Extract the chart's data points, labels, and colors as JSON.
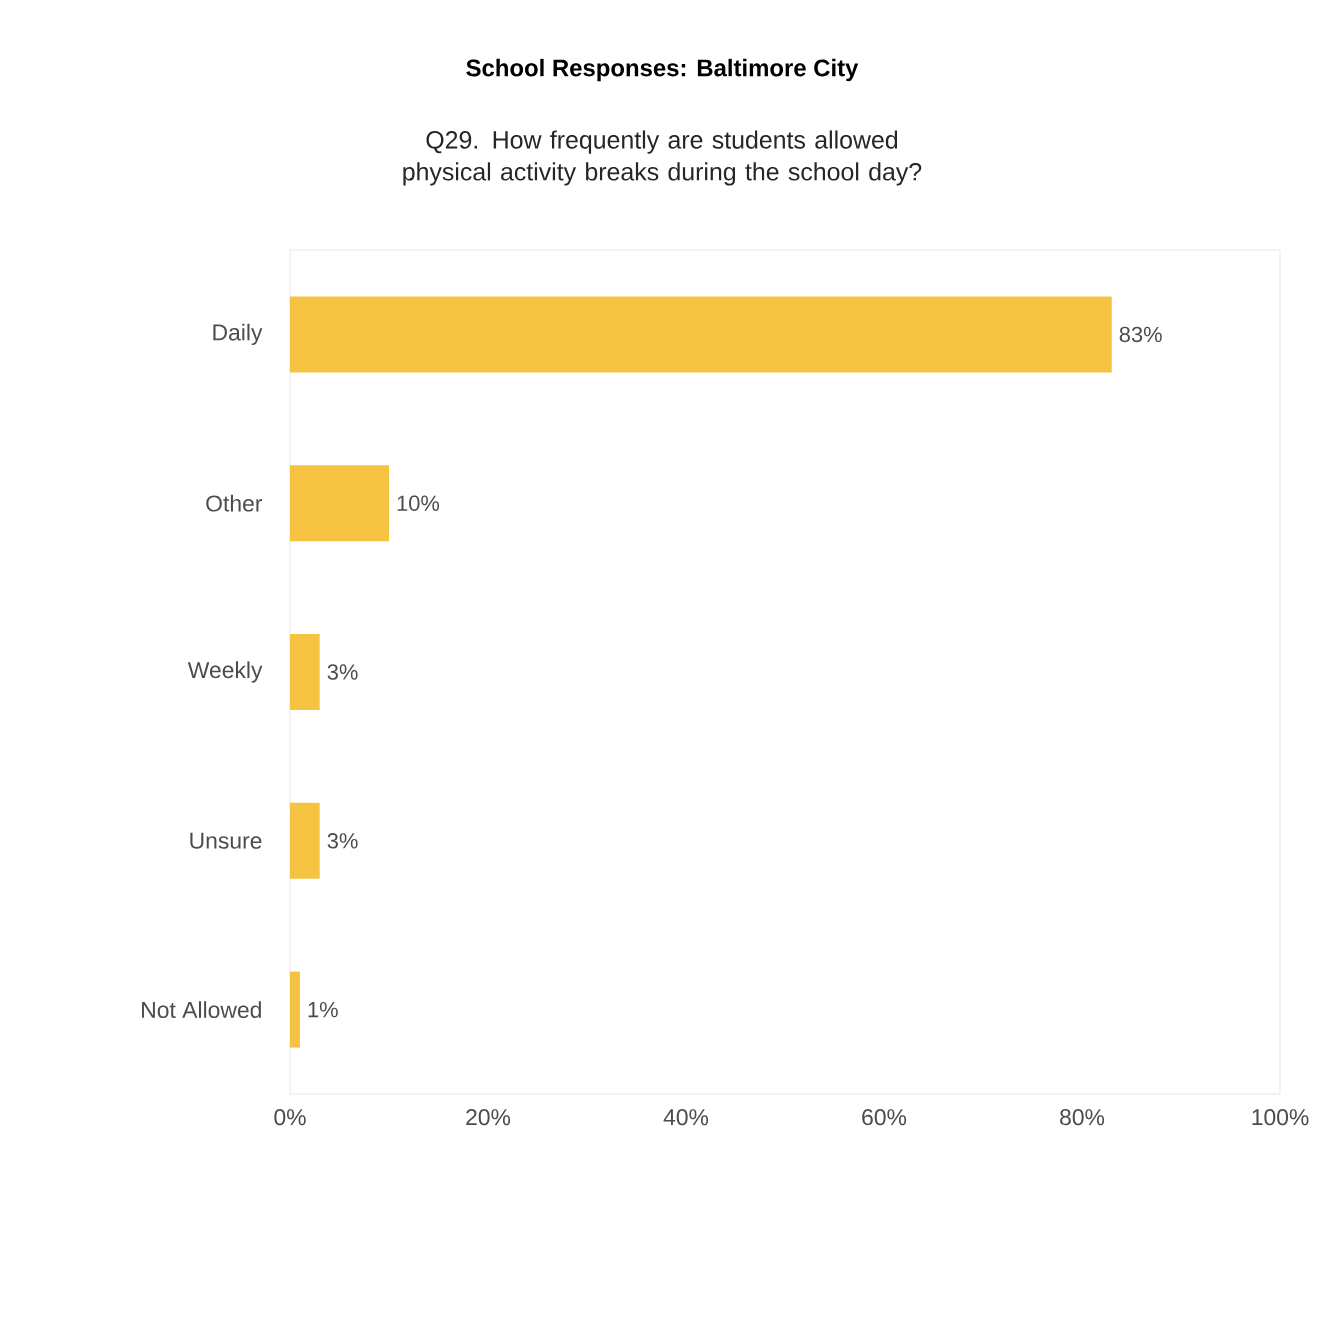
{
  "chart_data": {
    "type": "bar",
    "orientation": "horizontal",
    "title": "School Responses: Baltimore City",
    "subtitle": "Q29. How frequently are students allowed physical activity breaks during the school day?",
    "categories": [
      "Daily",
      "Other",
      "Weekly",
      "Unsure",
      "Not Allowed"
    ],
    "values": [
      83,
      10,
      3,
      3,
      1
    ],
    "value_labels": [
      "83%",
      "10%",
      "3%",
      "3%",
      "1%"
    ],
    "color": "#f5c242",
    "xlim": [
      0,
      100
    ],
    "xticks": [
      {
        "value": 0,
        "label": "0%"
      },
      {
        "value": 20,
        "label": "20%"
      },
      {
        "value": 40,
        "label": "40%"
      },
      {
        "value": 60,
        "label": "60%"
      },
      {
        "value": 80,
        "label": "80%"
      },
      {
        "value": 100,
        "label": "100%"
      }
    ]
  }
}
